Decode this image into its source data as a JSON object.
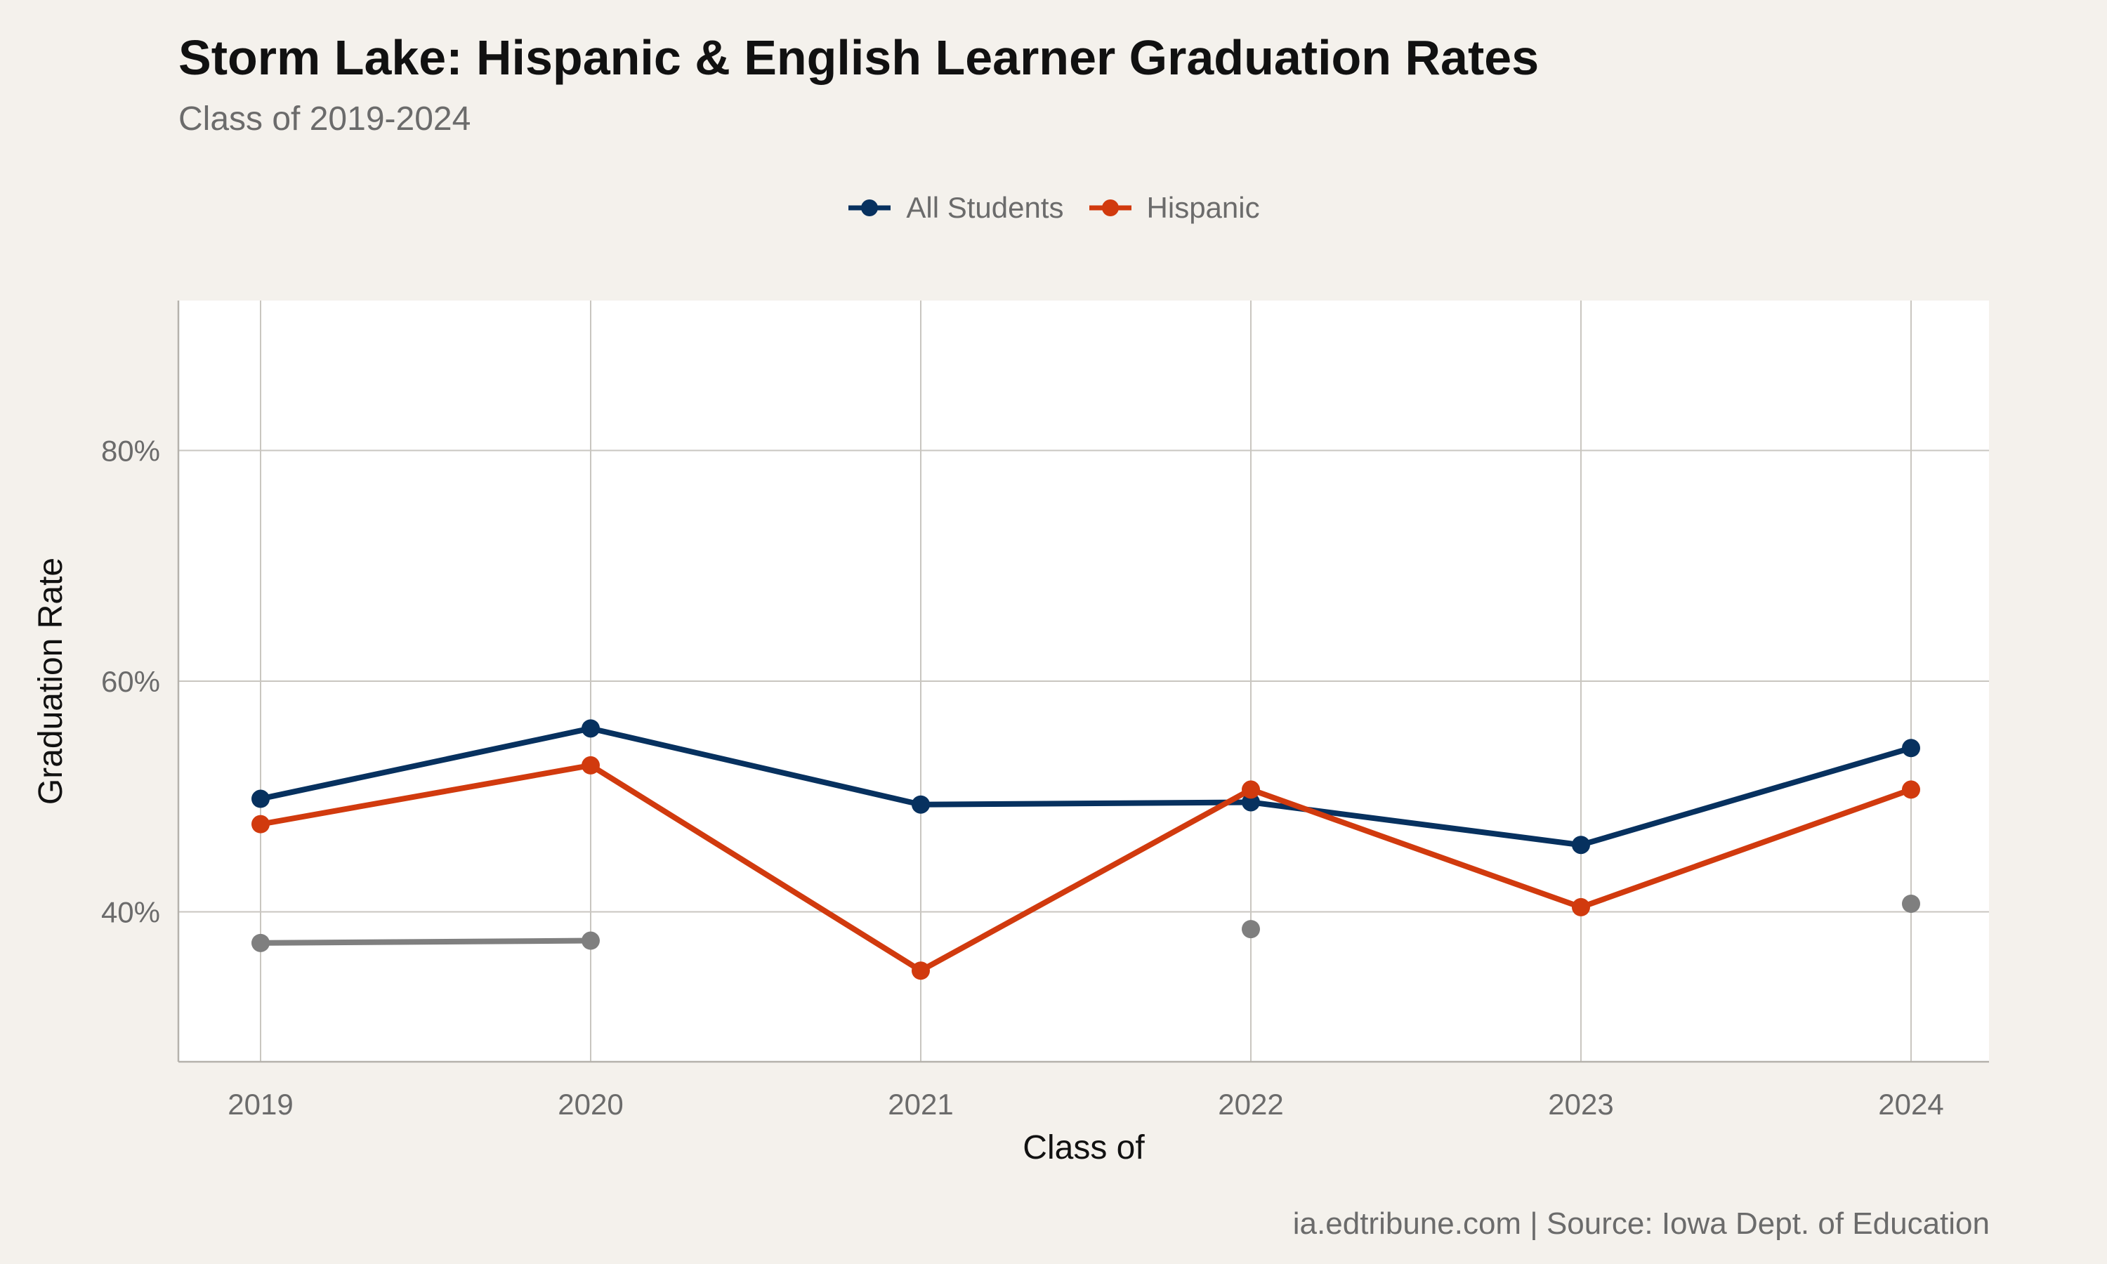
{
  "header": {
    "title": "Storm Lake: Hispanic & English Learner Graduation Rates",
    "subtitle": "Class of 2019-2024"
  },
  "caption": "ia.edtribune.com | Source: Iowa Dept. of Education",
  "chart_data": {
    "type": "line",
    "title": "Storm Lake: Hispanic & English Learner Graduation Rates",
    "subtitle": "Class of 2019-2024",
    "xlabel": "Class of",
    "ylabel": "Graduation Rate",
    "categories": [
      "2019",
      "2020",
      "2021",
      "2022",
      "2023",
      "2024"
    ],
    "ylim": [
      27,
      93
    ],
    "yticks": [
      40,
      60,
      80
    ],
    "ytick_labels": [
      "40%",
      "60%",
      "80%"
    ],
    "grid": true,
    "legend_position": "top-center",
    "series": [
      {
        "name": "All Students",
        "color": "#07315f",
        "in_legend": true,
        "values": [
          49.8,
          55.9,
          49.3,
          49.5,
          45.8,
          54.2
        ]
      },
      {
        "name": "Hispanic",
        "color": "#d13a0e",
        "in_legend": true,
        "values": [
          47.6,
          52.7,
          34.9,
          50.6,
          40.4,
          50.6
        ]
      },
      {
        "name": "",
        "color": "#7f7f7f",
        "in_legend": false,
        "values": [
          37.3,
          37.5,
          null,
          38.5,
          null,
          40.7
        ]
      }
    ]
  }
}
